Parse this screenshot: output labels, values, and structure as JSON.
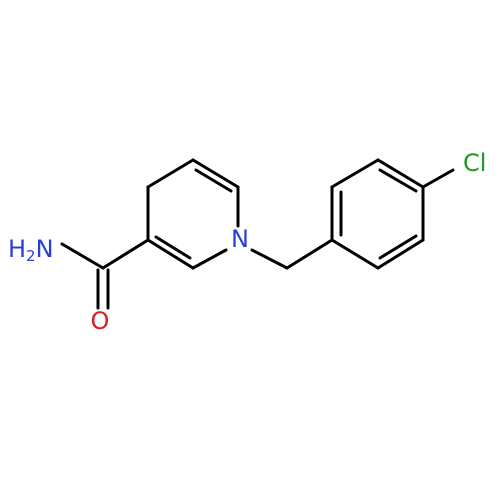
{
  "atoms": {
    "ring_nitrogen": "N",
    "chlorine": "Cl",
    "oxygen": "O",
    "amine": {
      "h": "H",
      "sub": "2",
      "n": "N"
    }
  }
}
